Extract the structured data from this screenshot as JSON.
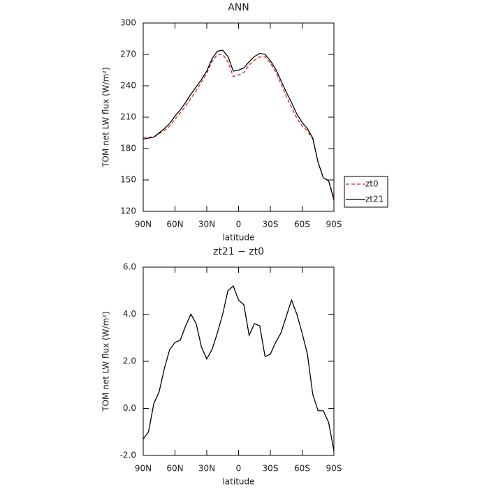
{
  "chart_data": [
    {
      "type": "line",
      "title": "ANN",
      "xlabel": "latitude",
      "ylabel": "TOM net LW flux (W/m²)",
      "x": [
        90,
        85,
        80,
        75,
        70,
        65,
        60,
        55,
        50,
        45,
        40,
        35,
        30,
        25,
        20,
        15,
        10,
        5,
        0,
        -5,
        -10,
        -15,
        -20,
        -25,
        -30,
        -35,
        -40,
        -45,
        -50,
        -55,
        -60,
        -65,
        -70,
        -75,
        -80,
        -85,
        -90
      ],
      "xlim": [
        90,
        -90
      ],
      "xticks": [
        {
          "value": 90,
          "label": "90N"
        },
        {
          "value": 60,
          "label": "60N"
        },
        {
          "value": 30,
          "label": "30N"
        },
        0,
        {
          "value": -30,
          "label": "30S"
        },
        {
          "value": -60,
          "label": "60S"
        },
        {
          "value": -90,
          "label": "90S"
        }
      ],
      "ylim": [
        120,
        300
      ],
      "yticks": [
        120,
        150,
        180,
        210,
        240,
        270,
        300
      ],
      "legend": "outside-right",
      "series": [
        {
          "name": "zt0",
          "color": "#e0201c",
          "style": "dashed",
          "values": [
            190.3,
            191,
            190.8,
            194.3,
            197.3,
            201.5,
            208.2,
            214.1,
            220.5,
            228,
            235.4,
            243.4,
            251.9,
            263.5,
            269.8,
            270,
            263,
            248.8,
            250.4,
            252.6,
            259.9,
            264.4,
            267.5,
            267.8,
            261.7,
            253.2,
            241.8,
            230.1,
            219.4,
            209,
            201.8,
            196.7,
            189.4,
            167.1,
            152.1,
            149.6,
            132.8
          ]
        },
        {
          "name": "zt21",
          "color": "#000000",
          "style": "solid",
          "values": [
            189,
            190,
            191,
            195,
            199,
            204,
            211,
            217,
            224,
            232,
            239,
            246,
            254,
            266,
            273,
            274,
            268,
            254,
            255,
            257,
            263,
            268,
            271,
            270,
            264,
            256,
            245,
            234,
            224,
            213,
            205,
            199,
            190,
            167,
            152,
            149,
            131
          ]
        }
      ]
    },
    {
      "type": "line",
      "title": "zt21 − zt0",
      "xlabel": "latitude",
      "ylabel": "TOM net LW flux (W/m²)",
      "x": [
        90,
        85,
        80,
        75,
        70,
        65,
        60,
        55,
        50,
        45,
        40,
        35,
        30,
        25,
        20,
        15,
        10,
        5,
        0,
        -5,
        -10,
        -15,
        -20,
        -25,
        -30,
        -35,
        -40,
        -45,
        -50,
        -55,
        -60,
        -65,
        -70,
        -75,
        -80,
        -85,
        -90
      ],
      "xlim": [
        90,
        -90
      ],
      "xticks": [
        {
          "value": 90,
          "label": "90N"
        },
        {
          "value": 60,
          "label": "60N"
        },
        {
          "value": 30,
          "label": "30N"
        },
        0,
        {
          "value": -30,
          "label": "30S"
        },
        {
          "value": -60,
          "label": "60S"
        },
        {
          "value": -90,
          "label": "90S"
        }
      ],
      "ylim": [
        -2,
        6
      ],
      "yticks": [
        {
          "value": -2,
          "label": "-2.0"
        },
        {
          "value": 0,
          "label": "0.0"
        },
        {
          "value": 2,
          "label": "2.0"
        },
        {
          "value": 4,
          "label": "4.0"
        },
        {
          "value": 6,
          "label": "6.0"
        }
      ],
      "series": [
        {
          "color": "#000000",
          "style": "solid",
          "values": [
            -1.3,
            -1.0,
            0.2,
            0.7,
            1.7,
            2.5,
            2.8,
            2.9,
            3.5,
            4.0,
            3.6,
            2.6,
            2.1,
            2.5,
            3.2,
            4.0,
            5.0,
            5.2,
            4.6,
            4.4,
            3.1,
            3.6,
            3.5,
            2.2,
            2.3,
            2.8,
            3.2,
            3.9,
            4.6,
            4.0,
            3.2,
            2.3,
            0.6,
            -0.1,
            -0.1,
            -0.6,
            -1.8
          ]
        }
      ]
    }
  ]
}
